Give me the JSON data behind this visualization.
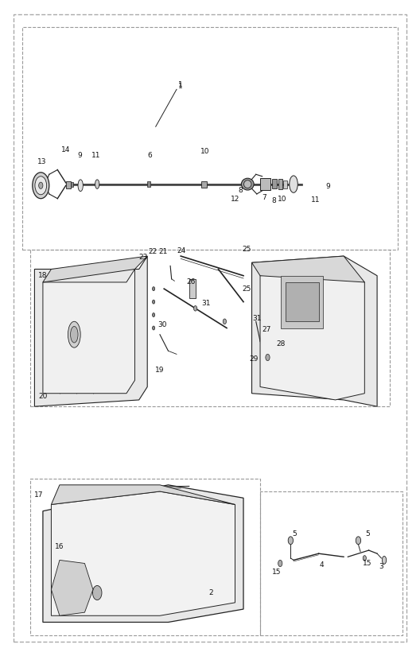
{
  "bg_color": "#ffffff",
  "fig_width": 5.28,
  "fig_height": 8.25,
  "dpi": 100,
  "line_color": "#222222",
  "text_color": "#111111",
  "dash_color": "#888888",
  "part_font_size": 6.5
}
